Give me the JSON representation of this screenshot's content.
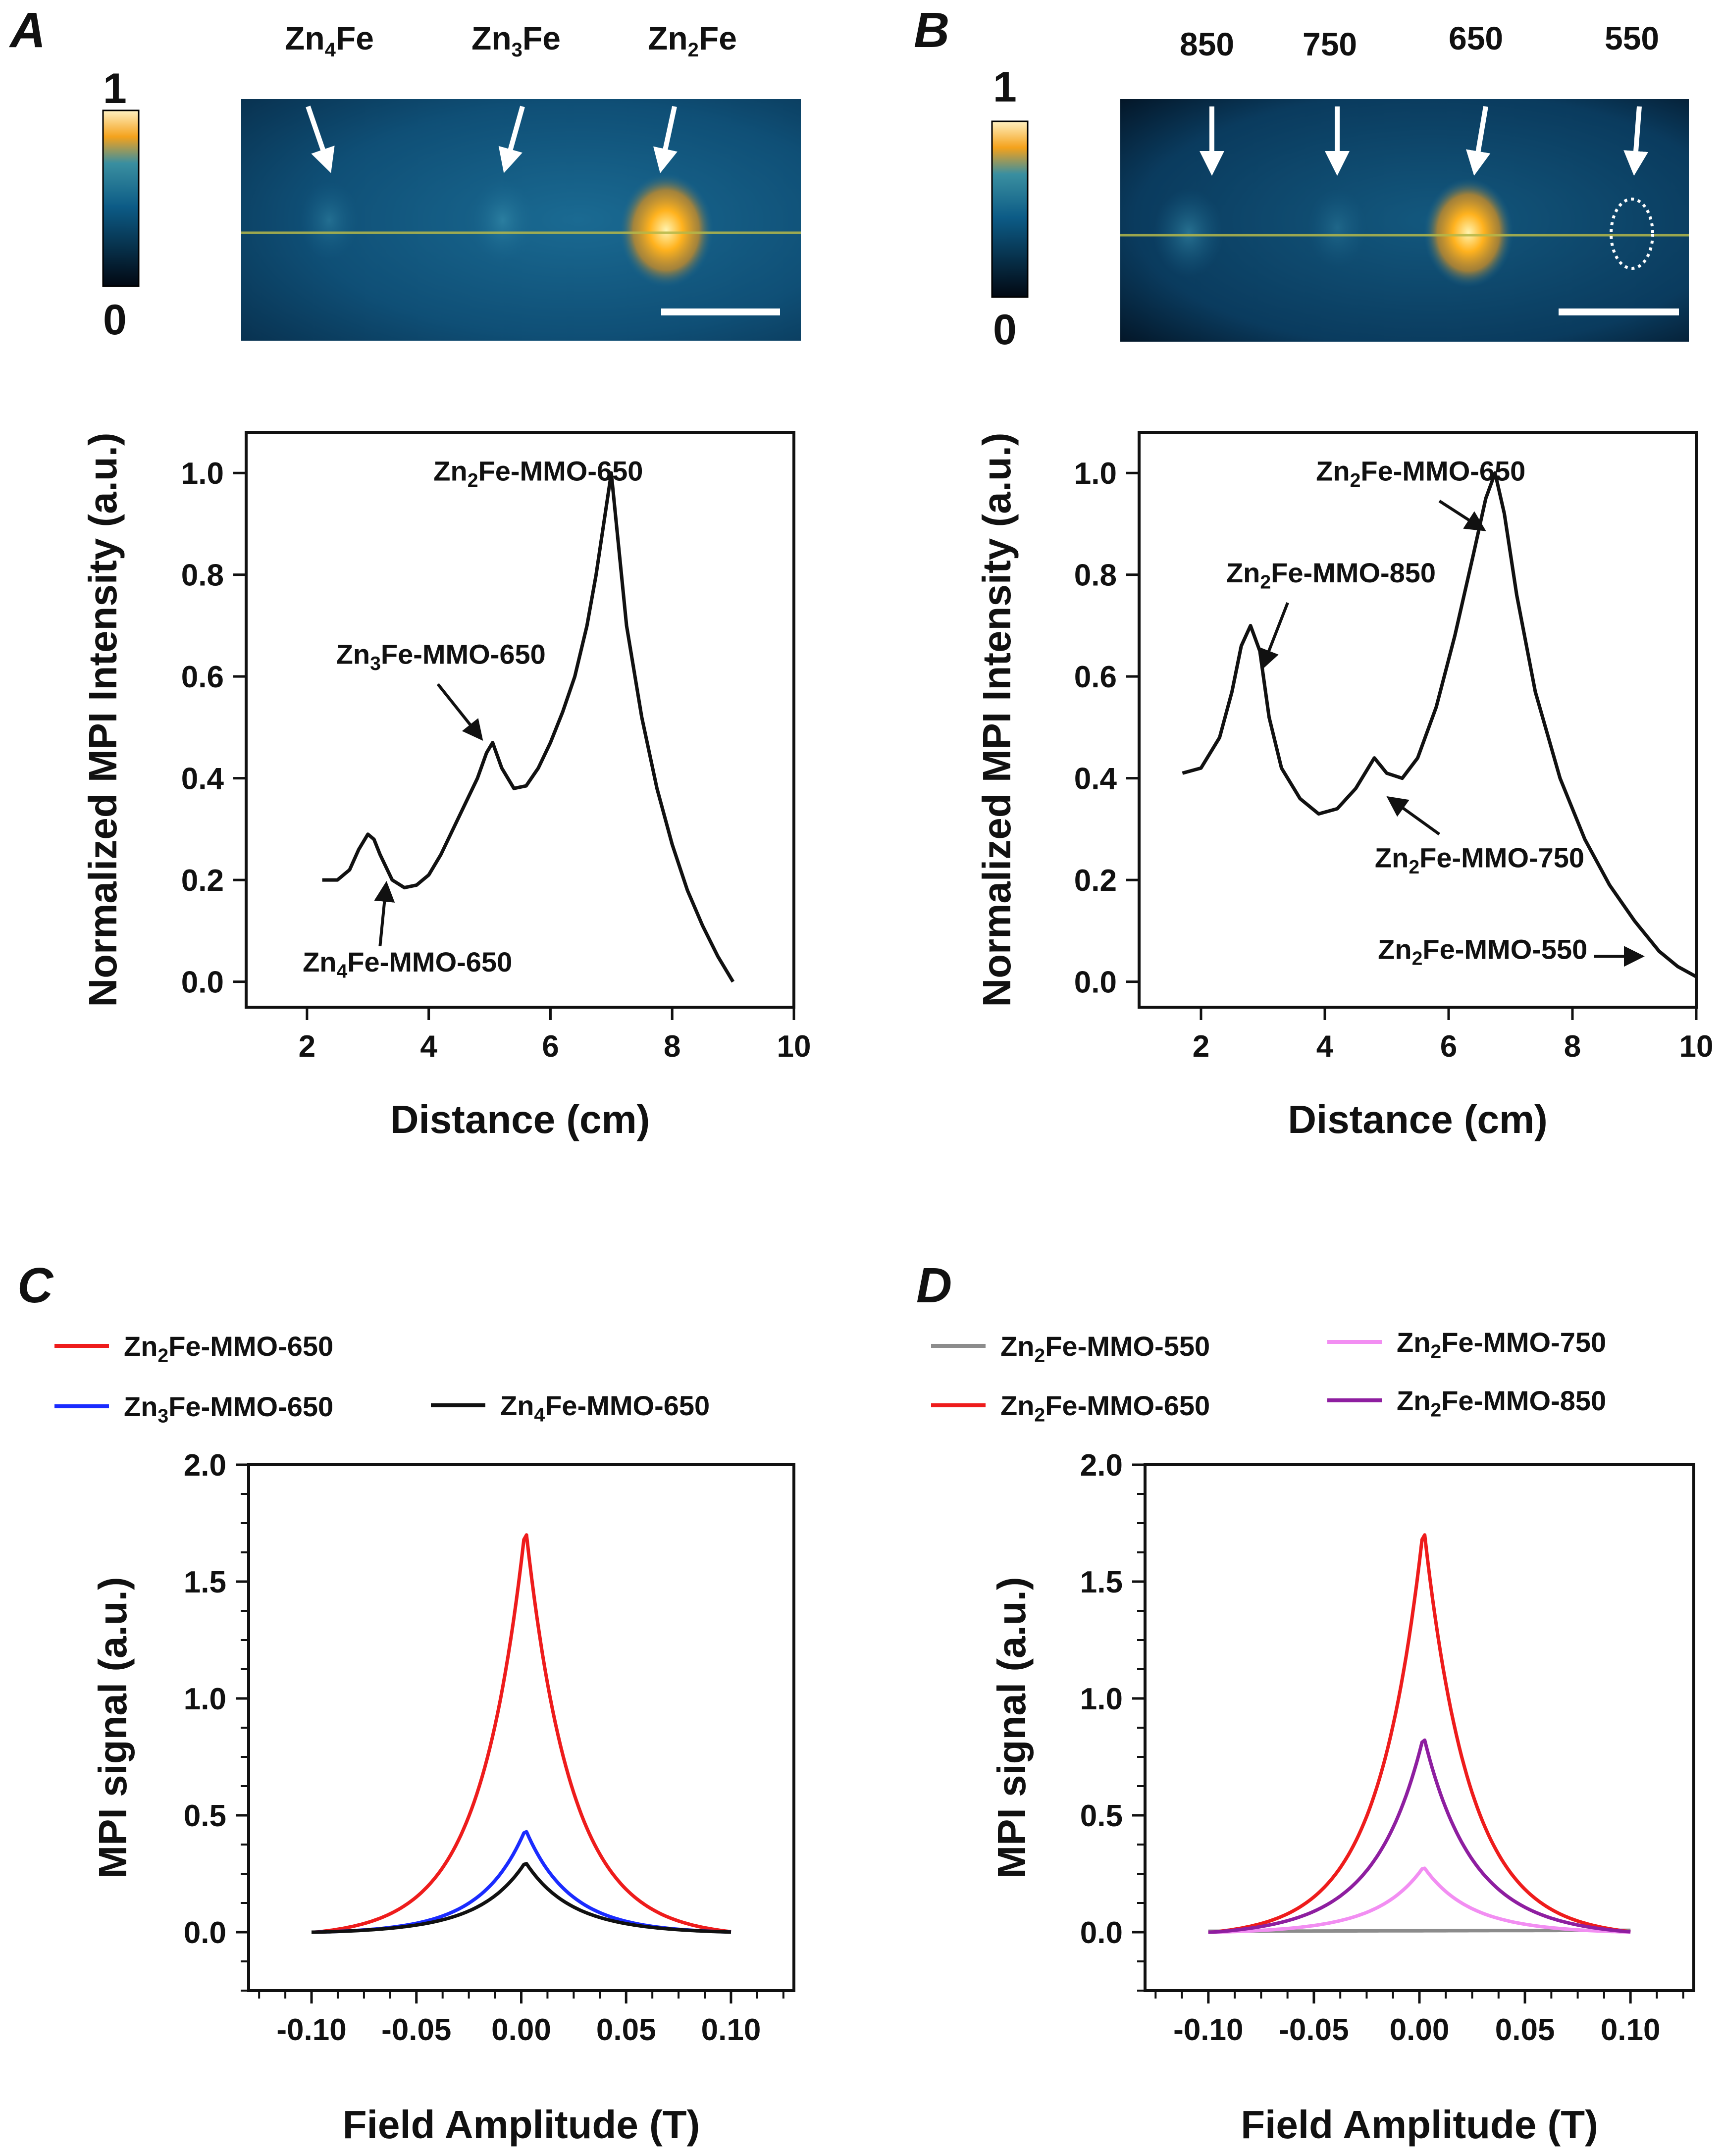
{
  "panels": {
    "A": {
      "letter": "A",
      "colorbar": {
        "max": "1",
        "min": "0"
      },
      "image_labels": [
        {
          "base": "Zn",
          "sub": "4",
          "rest": "Fe"
        },
        {
          "base": "Zn",
          "sub": "3",
          "rest": "Fe"
        },
        {
          "base": "Zn",
          "sub": "2",
          "rest": "Fe"
        }
      ]
    },
    "B": {
      "letter": "B",
      "colorbar": {
        "max": "1",
        "min": "0"
      },
      "image_labels": [
        "850",
        "750",
        "650",
        "550"
      ]
    },
    "C": {
      "letter": "C"
    },
    "D": {
      "letter": "D"
    }
  },
  "colors": {
    "zn2fe_650": "#ee1c1c",
    "zn3fe_650": "#1a2bff",
    "zn4fe_650": "#111111",
    "zn2fe_550": "#8c8c8c",
    "zn2fe_750": "#f28ef2",
    "zn2fe_850": "#8e1ea0",
    "black": "#111111"
  },
  "chart_data": [
    {
      "id": "A",
      "type": "line",
      "xlabel": "Distance (cm)",
      "ylabel": "Normalized MPI Intensity (a.u.)",
      "xlim": [
        1,
        10
      ],
      "ylim": [
        -0.05,
        1.08
      ],
      "xticks": [
        "2",
        "4",
        "6",
        "8",
        "10"
      ],
      "yticks": [
        "0.0",
        "0.2",
        "0.4",
        "0.6",
        "0.8",
        "1.0"
      ],
      "x": [
        2.25,
        2.5,
        2.7,
        2.85,
        3.0,
        3.1,
        3.2,
        3.4,
        3.6,
        3.8,
        4.0,
        4.2,
        4.4,
        4.6,
        4.8,
        4.95,
        5.05,
        5.2,
        5.4,
        5.6,
        5.8,
        6.0,
        6.2,
        6.4,
        6.6,
        6.75,
        6.9,
        7.0,
        7.1,
        7.25,
        7.5,
        7.75,
        8.0,
        8.25,
        8.5,
        8.75,
        9.0
      ],
      "y": [
        0.2,
        0.2,
        0.22,
        0.26,
        0.29,
        0.28,
        0.25,
        0.2,
        0.185,
        0.19,
        0.21,
        0.25,
        0.3,
        0.35,
        0.4,
        0.45,
        0.47,
        0.42,
        0.38,
        0.385,
        0.42,
        0.47,
        0.53,
        0.6,
        0.7,
        0.8,
        0.92,
        1.0,
        0.88,
        0.7,
        0.52,
        0.38,
        0.27,
        0.18,
        0.11,
        0.05,
        0.0
      ],
      "annotations": [
        {
          "base": "Zn",
          "sub": "2",
          "rest": "Fe-MMO-650",
          "x": 5.8,
          "y": 0.985
        },
        {
          "base": "Zn",
          "sub": "3",
          "rest": "Fe-MMO-650",
          "x": 4.2,
          "y": 0.625
        },
        {
          "base": "Zn",
          "sub": "4",
          "rest": "Fe-MMO-650",
          "x": 3.65,
          "y": 0.02
        }
      ]
    },
    {
      "id": "B",
      "type": "line",
      "xlabel": "Distance (cm)",
      "ylabel": "Normalized MPI Intensity (a.u.)",
      "xlim": [
        1,
        10
      ],
      "ylim": [
        -0.05,
        1.08
      ],
      "xticks": [
        "2",
        "4",
        "6",
        "8",
        "10"
      ],
      "yticks": [
        "0.0",
        "0.2",
        "0.4",
        "0.6",
        "0.8",
        "1.0"
      ],
      "x": [
        1.7,
        2.0,
        2.3,
        2.5,
        2.65,
        2.8,
        2.95,
        3.1,
        3.3,
        3.6,
        3.9,
        4.2,
        4.5,
        4.7,
        4.8,
        5.0,
        5.25,
        5.5,
        5.8,
        6.1,
        6.4,
        6.6,
        6.75,
        6.9,
        7.1,
        7.4,
        7.8,
        8.2,
        8.6,
        9.0,
        9.4,
        9.7,
        10.0
      ],
      "y": [
        0.41,
        0.42,
        0.48,
        0.57,
        0.66,
        0.7,
        0.65,
        0.52,
        0.42,
        0.36,
        0.33,
        0.34,
        0.38,
        0.42,
        0.44,
        0.41,
        0.4,
        0.44,
        0.54,
        0.68,
        0.84,
        0.95,
        1.0,
        0.92,
        0.76,
        0.57,
        0.4,
        0.28,
        0.19,
        0.12,
        0.06,
        0.03,
        0.01
      ],
      "annotations": [
        {
          "base": "Zn",
          "sub": "2",
          "rest": "Fe-MMO-650",
          "x": 5.55,
          "y": 0.985
        },
        {
          "base": "Zn",
          "sub": "2",
          "rest": "Fe-MMO-850",
          "x": 4.1,
          "y": 0.785
        },
        {
          "base": "Zn",
          "sub": "2",
          "rest": "Fe-MMO-750",
          "x": 6.5,
          "y": 0.225
        },
        {
          "base": "Zn",
          "sub": "2",
          "rest": "Fe-MMO-550",
          "x": 6.55,
          "y": 0.045
        }
      ]
    },
    {
      "id": "C",
      "type": "line",
      "xlabel": "Field Amplitude (T)",
      "ylabel": "MPI signal (a.u.)",
      "xlim": [
        -0.13,
        0.13
      ],
      "ylim": [
        -0.25,
        2.0
      ],
      "xticks": [
        "-0.10",
        "-0.05",
        "0.00",
        "0.05",
        "0.10"
      ],
      "yticks": [
        "0.0",
        "0.5",
        "1.0",
        "1.5",
        "2.0"
      ],
      "series": [
        {
          "name_base": "Zn",
          "name_sub": "2",
          "name_rest": "Fe-MMO-650",
          "color_key": "zn2fe_650",
          "peak": 1.74,
          "k": 4.2,
          "tail": 0.16
        },
        {
          "name_base": "Zn",
          "name_sub": "3",
          "name_rest": "Fe-MMO-650",
          "color_key": "zn3fe_650",
          "peak": 0.44,
          "k": 4.0,
          "tail": 0.25
        },
        {
          "name_base": "Zn",
          "name_sub": "4",
          "name_rest": "Fe-MMO-650",
          "color_key": "zn4fe_650",
          "peak": 0.3,
          "k": 3.5,
          "tail": 0.3
        }
      ]
    },
    {
      "id": "D",
      "type": "line",
      "xlabel": "Field Amplitude (T)",
      "ylabel": "MPI signal (a.u.)",
      "xlim": [
        -0.13,
        0.13
      ],
      "ylim": [
        -0.25,
        2.0
      ],
      "xticks": [
        "-0.10",
        "-0.05",
        "0.00",
        "0.05",
        "0.10"
      ],
      "yticks": [
        "0.0",
        "0.5",
        "1.0",
        "1.5",
        "2.0"
      ],
      "series": [
        {
          "name_base": "Zn",
          "name_sub": "2",
          "name_rest": "Fe-MMO-550",
          "color_key": "zn2fe_550",
          "peak": 0.005,
          "k": 1.0,
          "tail": 0.5
        },
        {
          "name_base": "Zn",
          "name_sub": "2",
          "name_rest": "Fe-MMO-750",
          "color_key": "zn2fe_750",
          "peak": 0.28,
          "k": 3.5,
          "tail": 0.3
        },
        {
          "name_base": "Zn",
          "name_sub": "2",
          "name_rest": "Fe-MMO-650",
          "color_key": "zn2fe_650",
          "peak": 1.74,
          "k": 4.2,
          "tail": 0.16
        },
        {
          "name_base": "Zn",
          "name_sub": "2",
          "name_rest": "Fe-MMO-850",
          "color_key": "zn2fe_850",
          "peak": 0.84,
          "k": 3.6,
          "tail": 0.22
        }
      ]
    }
  ]
}
